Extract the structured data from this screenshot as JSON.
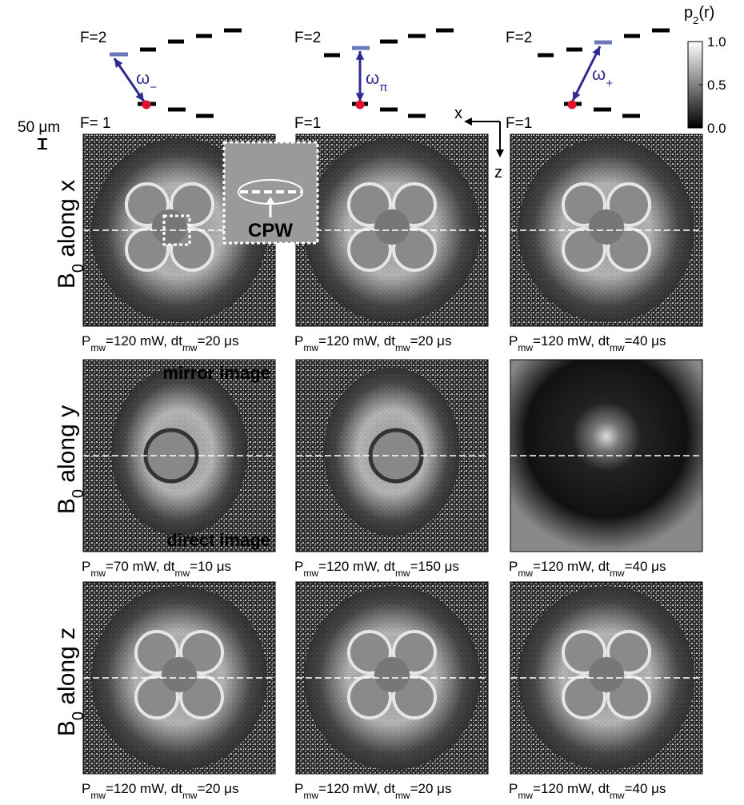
{
  "diagrams": [
    {
      "upper_label": "F=2",
      "lower_label": "F= 1",
      "transition": [
        "ω",
        "−"
      ]
    },
    {
      "upper_label": "F=2",
      "lower_label": "F=1",
      "transition": [
        "ω",
        "π"
      ]
    },
    {
      "upper_label": "F=2",
      "lower_label": "F=1",
      "transition": [
        "ω",
        "+"
      ]
    }
  ],
  "colorbar": {
    "label": [
      "p",
      "2",
      "(r)"
    ],
    "ticks": [
      {
        "value": 1,
        "label": "1.0"
      },
      {
        "value": 0.5,
        "label": "0.5"
      },
      {
        "value": 0,
        "label": "0.0"
      }
    ]
  },
  "scale_bar": "50 μm",
  "axes": {
    "x": "x",
    "z": "z"
  },
  "inset_label": "CPW",
  "annotations": {
    "mirror": "mirror image",
    "direct": "direct image"
  },
  "rows": [
    {
      "label": [
        "B",
        "0",
        " along x"
      ],
      "panels": [
        {
          "caption": [
            "P",
            "mw",
            "=120 mW, dt",
            "mw",
            "=20 μs"
          ]
        },
        {
          "caption": [
            "P",
            "mw",
            "=120 mW, dt",
            "mw",
            "=20 μs"
          ]
        },
        {
          "caption": [
            "P",
            "mw",
            "=120 mW, dt",
            "mw",
            "=40 μs"
          ]
        }
      ]
    },
    {
      "label": [
        "B",
        "0",
        " along y"
      ],
      "panels": [
        {
          "caption": [
            "P",
            "mw",
            "=70 mW, dt",
            "mw",
            "=10 μs"
          ]
        },
        {
          "caption": [
            "P",
            "mw",
            "=120 mW, dt",
            "mw",
            "=150 μs"
          ]
        },
        {
          "caption": [
            "P",
            "mw",
            "=120 mW, dt",
            "mw",
            "=40 μs"
          ]
        }
      ]
    },
    {
      "label": [
        "B",
        "0",
        " along z"
      ],
      "panels": [
        {
          "caption": [
            "P",
            "mw",
            "=120 mW, dt",
            "mw",
            "=20 μs"
          ]
        },
        {
          "caption": [
            "P",
            "mw",
            "=120 mW, dt",
            "mw",
            "=20 μs"
          ]
        },
        {
          "caption": [
            "P",
            "mw",
            "=120 mW, dt",
            "mw",
            "=40 μs"
          ]
        }
      ]
    }
  ]
}
